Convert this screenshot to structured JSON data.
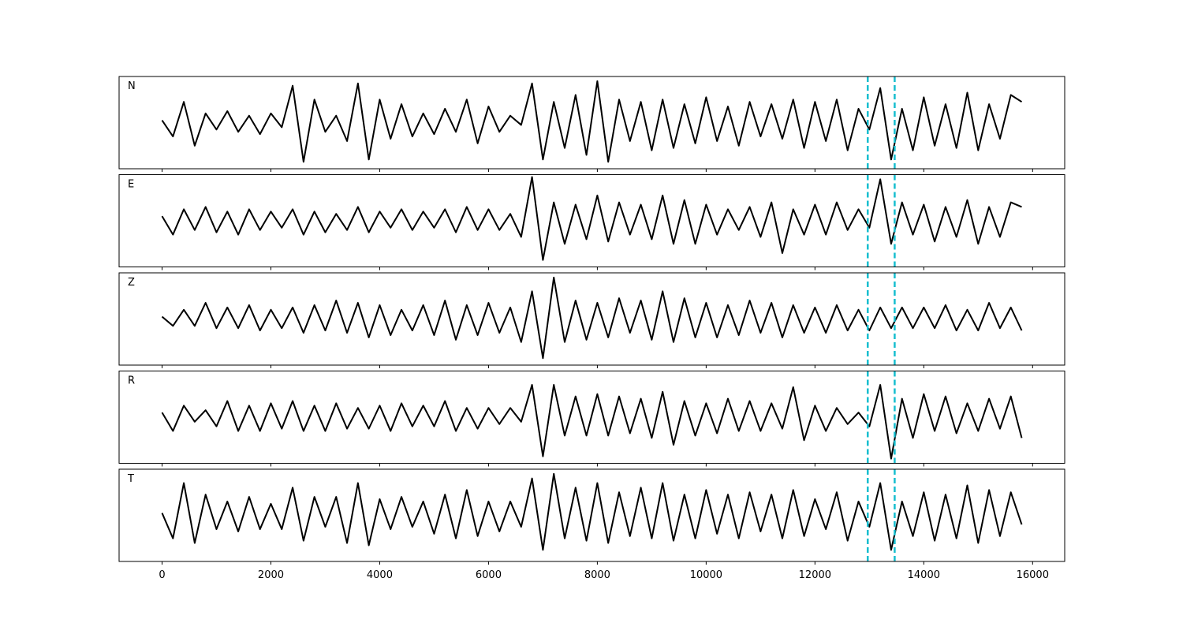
{
  "chart_data": {
    "type": "line",
    "x": [
      0,
      200,
      400,
      600,
      800,
      1000,
      1200,
      1400,
      1600,
      1800,
      2000,
      2200,
      2400,
      2600,
      2800,
      3000,
      3200,
      3400,
      3600,
      3800,
      4000,
      4200,
      4400,
      4600,
      4800,
      5000,
      5200,
      5400,
      5600,
      5800,
      6000,
      6200,
      6400,
      6600,
      6800,
      7000,
      7200,
      7400,
      7600,
      7800,
      8000,
      8200,
      8400,
      8600,
      8800,
      9000,
      9200,
      9400,
      9600,
      9800,
      10000,
      10200,
      10400,
      10600,
      10800,
      11000,
      11200,
      11400,
      11600,
      11800,
      12000,
      12200,
      12400,
      12600,
      12800,
      13000,
      13200,
      13400,
      13600,
      13800,
      14000,
      14200,
      14400,
      14600,
      14800,
      15000,
      15200,
      15400,
      15600,
      15800
    ],
    "series": [
      {
        "name": "N",
        "color": "#000000",
        "values": [
          0.05,
          -0.3,
          0.45,
          -0.5,
          0.2,
          -0.15,
          0.25,
          -0.2,
          0.15,
          -0.25,
          0.2,
          -0.1,
          0.8,
          -0.85,
          0.5,
          -0.2,
          0.15,
          -0.4,
          0.85,
          -0.8,
          0.5,
          -0.35,
          0.4,
          -0.3,
          0.2,
          -0.25,
          0.3,
          -0.2,
          0.5,
          -0.45,
          0.35,
          -0.2,
          0.15,
          -0.05,
          0.85,
          -0.8,
          0.45,
          -0.55,
          0.6,
          -0.7,
          0.9,
          -0.85,
          0.5,
          -0.4,
          0.45,
          -0.6,
          0.5,
          -0.55,
          0.4,
          -0.45,
          0.55,
          -0.4,
          0.35,
          -0.5,
          0.45,
          -0.3,
          0.4,
          -0.35,
          0.5,
          -0.55,
          0.45,
          -0.4,
          0.5,
          -0.6,
          0.3,
          -0.15,
          0.75,
          -0.8,
          0.3,
          -0.6,
          0.55,
          -0.5,
          0.4,
          -0.55,
          0.65,
          -0.6,
          0.4,
          -0.35,
          0.6,
          0.45
        ]
      },
      {
        "name": "E",
        "color": "#000000",
        "values": [
          0.1,
          -0.3,
          0.25,
          -0.2,
          0.3,
          -0.25,
          0.2,
          -0.3,
          0.25,
          -0.2,
          0.2,
          -0.15,
          0.25,
          -0.3,
          0.2,
          -0.25,
          0.15,
          -0.2,
          0.3,
          -0.25,
          0.2,
          -0.15,
          0.25,
          -0.2,
          0.2,
          -0.15,
          0.25,
          -0.25,
          0.3,
          -0.2,
          0.25,
          -0.2,
          0.15,
          -0.35,
          0.95,
          -0.85,
          0.4,
          -0.5,
          0.35,
          -0.4,
          0.55,
          -0.45,
          0.4,
          -0.3,
          0.35,
          -0.4,
          0.55,
          -0.5,
          0.45,
          -0.5,
          0.35,
          -0.3,
          0.25,
          -0.2,
          0.3,
          -0.35,
          0.4,
          -0.7,
          0.25,
          -0.3,
          0.35,
          -0.3,
          0.4,
          -0.2,
          0.25,
          -0.15,
          0.9,
          -0.5,
          0.4,
          -0.3,
          0.35,
          -0.45,
          0.3,
          -0.35,
          0.45,
          -0.5,
          0.3,
          -0.35,
          0.4,
          0.3
        ]
      },
      {
        "name": "Z",
        "color": "#000000",
        "values": [
          0.05,
          -0.15,
          0.2,
          -0.15,
          0.35,
          -0.2,
          0.25,
          -0.2,
          0.3,
          -0.25,
          0.2,
          -0.2,
          0.25,
          -0.3,
          0.3,
          -0.25,
          0.4,
          -0.3,
          0.35,
          -0.4,
          0.3,
          -0.35,
          0.2,
          -0.25,
          0.3,
          -0.35,
          0.4,
          -0.45,
          0.3,
          -0.35,
          0.35,
          -0.3,
          0.25,
          -0.5,
          0.6,
          -0.85,
          0.9,
          -0.5,
          0.4,
          -0.45,
          0.35,
          -0.4,
          0.45,
          -0.3,
          0.4,
          -0.45,
          0.6,
          -0.5,
          0.45,
          -0.4,
          0.35,
          -0.4,
          0.3,
          -0.35,
          0.4,
          -0.3,
          0.35,
          -0.4,
          0.3,
          -0.3,
          0.25,
          -0.3,
          0.3,
          -0.25,
          0.2,
          -0.25,
          0.25,
          -0.2,
          0.25,
          -0.2,
          0.25,
          -0.2,
          0.3,
          -0.25,
          0.2,
          -0.25,
          0.35,
          -0.2,
          0.25,
          -0.25
        ]
      },
      {
        "name": "R",
        "color": "#000000",
        "values": [
          0.1,
          -0.3,
          0.25,
          -0.1,
          0.15,
          -0.2,
          0.35,
          -0.3,
          0.25,
          -0.3,
          0.3,
          -0.25,
          0.35,
          -0.3,
          0.25,
          -0.3,
          0.3,
          -0.25,
          0.2,
          -0.25,
          0.25,
          -0.3,
          0.3,
          -0.2,
          0.25,
          -0.2,
          0.35,
          -0.3,
          0.2,
          -0.25,
          0.2,
          -0.15,
          0.2,
          -0.1,
          0.7,
          -0.85,
          0.7,
          -0.4,
          0.45,
          -0.4,
          0.5,
          -0.4,
          0.45,
          -0.35,
          0.4,
          -0.45,
          0.55,
          -0.6,
          0.35,
          -0.4,
          0.3,
          -0.35,
          0.4,
          -0.3,
          0.35,
          -0.3,
          0.3,
          -0.25,
          0.65,
          -0.5,
          0.25,
          -0.3,
          0.2,
          -0.15,
          0.1,
          -0.2,
          0.7,
          -0.9,
          0.4,
          -0.45,
          0.5,
          -0.3,
          0.45,
          -0.35,
          0.3,
          -0.3,
          0.4,
          -0.25,
          0.45,
          -0.45
        ]
      },
      {
        "name": "T",
        "color": "#000000",
        "values": [
          0.05,
          -0.5,
          0.7,
          -0.6,
          0.45,
          -0.3,
          0.3,
          -0.35,
          0.4,
          -0.3,
          0.25,
          -0.3,
          0.6,
          -0.55,
          0.4,
          -0.25,
          0.4,
          -0.6,
          0.7,
          -0.65,
          0.35,
          -0.3,
          0.4,
          -0.25,
          0.3,
          -0.4,
          0.45,
          -0.5,
          0.55,
          -0.45,
          0.3,
          -0.35,
          0.3,
          -0.25,
          0.8,
          -0.75,
          0.9,
          -0.5,
          0.6,
          -0.55,
          0.7,
          -0.6,
          0.5,
          -0.45,
          0.6,
          -0.5,
          0.7,
          -0.55,
          0.45,
          -0.5,
          0.55,
          -0.4,
          0.45,
          -0.5,
          0.5,
          -0.35,
          0.45,
          -0.5,
          0.55,
          -0.45,
          0.35,
          -0.3,
          0.5,
          -0.55,
          0.3,
          -0.25,
          0.7,
          -0.75,
          0.3,
          -0.45,
          0.5,
          -0.55,
          0.45,
          -0.5,
          0.65,
          -0.6,
          0.55,
          -0.45,
          0.5,
          -0.2
        ]
      }
    ],
    "xlim": [
      -790,
      16590
    ],
    "xticks": [
      0,
      2000,
      4000,
      6000,
      8000,
      10000,
      12000,
      14000,
      16000
    ],
    "ylim": [
      -1,
      1
    ],
    "markers": {
      "color": "#17becf",
      "x": [
        12970,
        13465
      ]
    }
  }
}
